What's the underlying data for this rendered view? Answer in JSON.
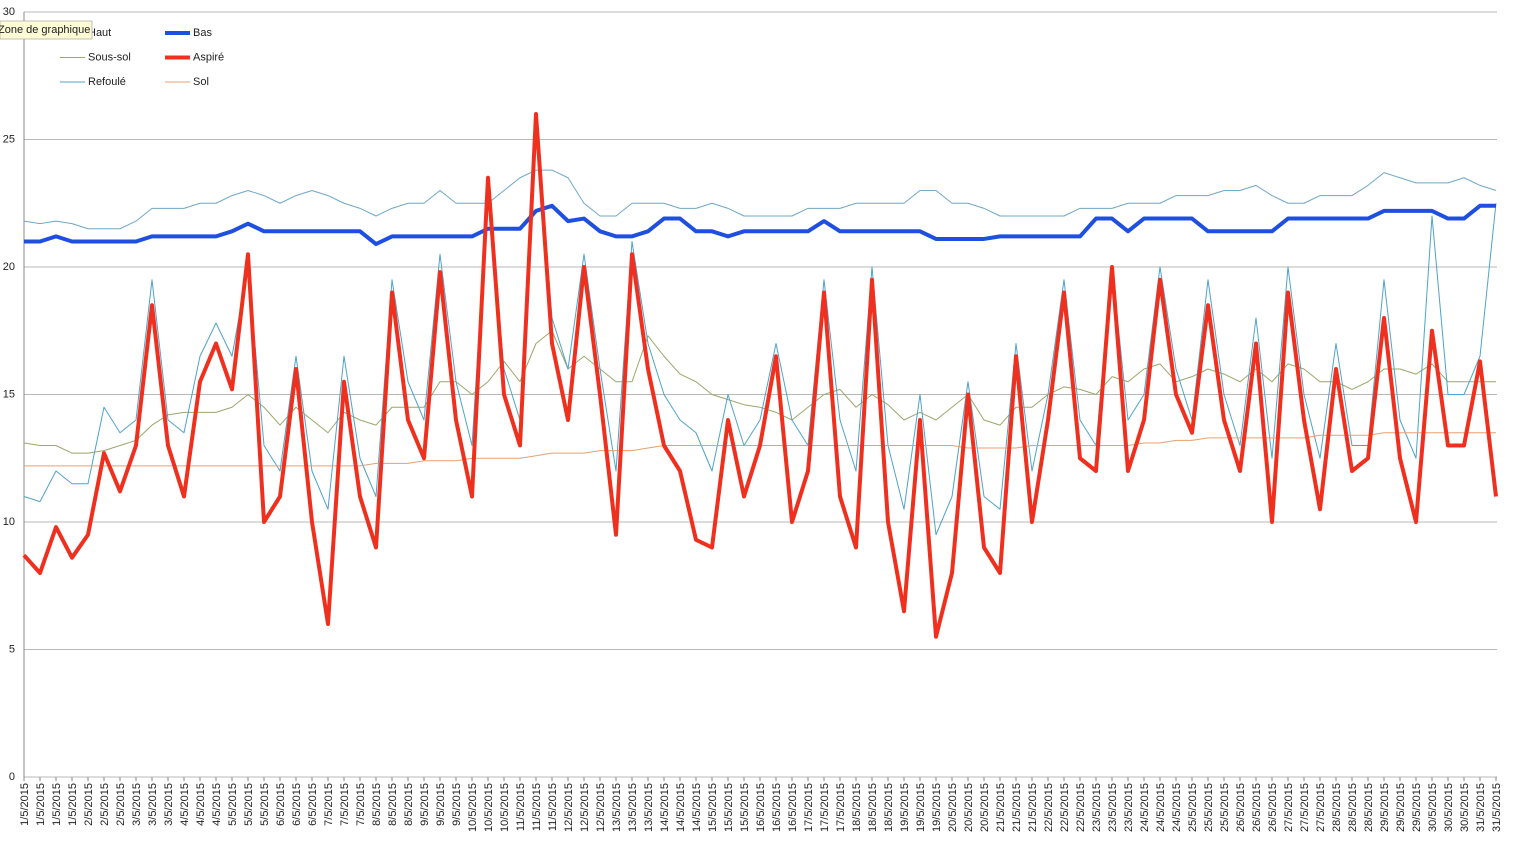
{
  "chart_data": {
    "type": "line",
    "tooltip": "Zone de graphique",
    "categories": [
      "1/5/2015",
      "1/5/2015",
      "1/5/2015",
      "1/5/2015",
      "2/5/2015",
      "2/5/2015",
      "2/5/2015",
      "3/5/2015",
      "3/5/2015",
      "3/5/2015",
      "4/5/2015",
      "4/5/2015",
      "4/5/2015",
      "5/5/2015",
      "5/5/2015",
      "5/5/2015",
      "6/5/2015",
      "6/5/2015",
      "6/5/2015",
      "7/5/2015",
      "7/5/2015",
      "7/5/2015",
      "8/5/2015",
      "8/5/2015",
      "8/5/2015",
      "9/5/2015",
      "9/5/2015",
      "9/5/2015",
      "10/5/2015",
      "10/5/2015",
      "10/5/2015",
      "11/5/2015",
      "11/5/2015",
      "11/5/2015",
      "12/5/2015",
      "12/5/2015",
      "12/5/2015",
      "13/5/2015",
      "13/5/2015",
      "13/5/2015",
      "14/5/2015",
      "14/5/2015",
      "14/5/2015",
      "15/5/2015",
      "15/5/2015",
      "15/5/2015",
      "16/5/2015",
      "16/5/2015",
      "16/5/2015",
      "17/5/2015",
      "17/5/2015",
      "17/5/2015",
      "18/5/2015",
      "18/5/2015",
      "18/5/2015",
      "19/5/2015",
      "19/5/2015",
      "19/5/2015",
      "20/5/2015",
      "20/5/2015",
      "20/5/2015",
      "21/5/2015",
      "21/5/2015",
      "21/5/2015",
      "22/5/2015",
      "22/5/2015",
      "22/5/2015",
      "23/5/2015",
      "23/5/2015",
      "23/5/2015",
      "24/5/2015",
      "24/5/2015",
      "24/5/2015",
      "25/5/2015",
      "25/5/2015",
      "25/5/2015",
      "26/5/2015",
      "26/5/2015",
      "26/5/2015",
      "27/5/2015",
      "27/5/2015",
      "27/5/2015",
      "28/5/2015",
      "28/5/2015",
      "28/5/2015",
      "29/5/2015",
      "29/5/2015",
      "29/5/2015",
      "30/5/2015",
      "30/5/2015",
      "30/5/2015",
      "31/5/2015",
      "31/5/2015"
    ],
    "series": [
      {
        "name": "Haut",
        "color": "#6fa8c8",
        "width": 1,
        "values": [
          21.8,
          21.7,
          21.8,
          21.7,
          21.5,
          21.5,
          21.5,
          21.8,
          22.3,
          22.3,
          22.3,
          22.5,
          22.5,
          22.8,
          23,
          22.8,
          22.5,
          22.8,
          23,
          22.8,
          22.5,
          22.3,
          22,
          22.3,
          22.5,
          22.5,
          23,
          22.5,
          22.5,
          22.5,
          23,
          23.5,
          23.8,
          23.8,
          23.5,
          22.5,
          22,
          22,
          22.5,
          22.5,
          22.5,
          22.3,
          22.3,
          22.5,
          22.3,
          22,
          22,
          22,
          22,
          22.3,
          22.3,
          22.3,
          22.5,
          22.5,
          22.5,
          22.5,
          23,
          23,
          22.5,
          22.5,
          22.3,
          22,
          22,
          22,
          22,
          22,
          22.3,
          22.3,
          22.3,
          22.5,
          22.5,
          22.5,
          22.8,
          22.8,
          22.8,
          23,
          23,
          23.2,
          22.8,
          22.5,
          22.5,
          22.8,
          22.8,
          22.8,
          23.2,
          23.7,
          23.5,
          23.3,
          23.3,
          23.3,
          23.5,
          23.2,
          23
        ]
      },
      {
        "name": "Bas",
        "color": "#1f4fe0",
        "width": 4,
        "values": [
          21,
          21,
          21.2,
          21,
          21,
          21,
          21,
          21,
          21.2,
          21.2,
          21.2,
          21.2,
          21.2,
          21.4,
          21.7,
          21.4,
          21.4,
          21.4,
          21.4,
          21.4,
          21.4,
          21.4,
          20.9,
          21.2,
          21.2,
          21.2,
          21.2,
          21.2,
          21.2,
          21.5,
          21.5,
          21.5,
          22.2,
          22.4,
          21.8,
          21.9,
          21.4,
          21.2,
          21.2,
          21.4,
          21.9,
          21.9,
          21.4,
          21.4,
          21.2,
          21.4,
          21.4,
          21.4,
          21.4,
          21.4,
          21.8,
          21.4,
          21.4,
          21.4,
          21.4,
          21.4,
          21.4,
          21.1,
          21.1,
          21.1,
          21.1,
          21.2,
          21.2,
          21.2,
          21.2,
          21.2,
          21.2,
          21.9,
          21.9,
          21.4,
          21.9,
          21.9,
          21.9,
          21.9,
          21.4,
          21.4,
          21.4,
          21.4,
          21.4,
          21.9,
          21.9,
          21.9,
          21.9,
          21.9,
          21.9,
          22.2,
          22.2,
          22.2,
          22.2,
          21.9,
          21.9,
          22.4,
          22.4
        ]
      },
      {
        "name": "Sous-sol",
        "color": "#9aa86a",
        "width": 1,
        "values": [
          13.1,
          13,
          13,
          12.7,
          12.7,
          12.8,
          13,
          13.2,
          13.8,
          14.2,
          14.3,
          14.3,
          14.3,
          14.5,
          15,
          14.5,
          13.8,
          14.5,
          14,
          13.5,
          14.3,
          14,
          13.8,
          14.5,
          14.5,
          14.5,
          15.5,
          15.5,
          15,
          15.5,
          16.3,
          15.5,
          17,
          17.5,
          16,
          16.5,
          16,
          15.5,
          15.5,
          17.3,
          16.5,
          15.8,
          15.5,
          15,
          14.8,
          14.6,
          14.5,
          14.3,
          14,
          14.5,
          15,
          15.2,
          14.5,
          15,
          14.6,
          14,
          14.3,
          14,
          14.5,
          15,
          14,
          13.8,
          14.5,
          14.5,
          15,
          15.3,
          15.2,
          15,
          15.7,
          15.5,
          16,
          16.2,
          15.5,
          15.7,
          16,
          15.8,
          15.5,
          16,
          15.5,
          16.2,
          16,
          15.5,
          15.5,
          15.2,
          15.5,
          16,
          16,
          15.8,
          16.2,
          15.5,
          15.5,
          15.5,
          15.5
        ]
      },
      {
        "name": "Aspiré",
        "color": "#f0301e",
        "width": 4,
        "values": [
          8.7,
          8.0,
          9.8,
          8.6,
          9.5,
          12.7,
          11.2,
          13,
          18.5,
          13,
          11,
          15.5,
          17,
          15.2,
          20.5,
          10,
          11,
          16,
          10,
          6,
          15.5,
          11,
          9,
          19,
          14,
          12.5,
          19.8,
          14,
          11,
          23.5,
          15,
          13,
          26,
          17,
          14,
          20,
          15,
          9.5,
          20.5,
          16,
          13,
          12,
          9.3,
          9,
          14,
          11,
          13,
          16.5,
          10,
          12,
          19,
          11,
          9,
          19.5,
          10,
          6.5,
          14,
          5.5,
          8,
          15,
          9,
          8,
          16.5,
          10,
          14,
          19,
          12.5,
          12,
          20,
          12,
          14,
          19.5,
          15,
          13.5,
          18.5,
          14,
          12,
          17,
          10,
          19,
          14,
          10.5,
          16,
          12,
          12.5,
          18,
          12.5,
          10,
          17.5,
          13,
          13,
          16.3,
          11
        ]
      },
      {
        "name": "Refoulé",
        "color": "#4fa3c9",
        "width": 1,
        "values": [
          11,
          10.8,
          12,
          11.5,
          11.5,
          14.5,
          13.5,
          14,
          19.5,
          14,
          13.5,
          16.5,
          17.8,
          16.5,
          20,
          13,
          12,
          16.5,
          12,
          10.5,
          16.5,
          12.5,
          11,
          19.5,
          15.5,
          14,
          20.5,
          15.5,
          13,
          23,
          16,
          14,
          26,
          18,
          16,
          20.5,
          16,
          12,
          21,
          17,
          15,
          14,
          13.5,
          12,
          15,
          13,
          14,
          17,
          14,
          13,
          19.5,
          14,
          12,
          20,
          13,
          10.5,
          15,
          9.5,
          11,
          15.5,
          11,
          10.5,
          17,
          12,
          15,
          19.5,
          14,
          13,
          20,
          14,
          15,
          20,
          16,
          14,
          19.5,
          15,
          13,
          18,
          12.5,
          20,
          15,
          12.5,
          17,
          13,
          13,
          19.5,
          14,
          12.5,
          22,
          15,
          15,
          16.5,
          22.5
        ]
      },
      {
        "name": "Sol",
        "color": "#e8a070",
        "width": 1,
        "values": [
          12.2,
          12.2,
          12.2,
          12.2,
          12.2,
          12.2,
          12.2,
          12.2,
          12.2,
          12.2,
          12.2,
          12.2,
          12.2,
          12.2,
          12.2,
          12.2,
          12.2,
          12.2,
          12.2,
          12.2,
          12.2,
          12.2,
          12.3,
          12.3,
          12.3,
          12.4,
          12.4,
          12.4,
          12.5,
          12.5,
          12.5,
          12.5,
          12.6,
          12.7,
          12.7,
          12.7,
          12.8,
          12.8,
          12.8,
          12.9,
          13,
          13,
          13,
          13,
          13,
          13,
          13,
          13,
          13,
          13,
          13,
          13,
          13,
          13,
          13,
          13,
          13,
          13,
          13,
          12.9,
          12.9,
          12.9,
          12.9,
          13,
          13,
          13,
          13,
          13,
          13,
          13,
          13.1,
          13.1,
          13.2,
          13.2,
          13.3,
          13.3,
          13.3,
          13.3,
          13.3,
          13.3,
          13.3,
          13.4,
          13.4,
          13.4,
          13.4,
          13.5,
          13.5,
          13.5,
          13.5,
          13.5,
          13.5,
          13.5,
          13.5
        ]
      }
    ],
    "ylim": [
      0,
      30
    ],
    "yticks": [
      0,
      5,
      10,
      15,
      20,
      25,
      30
    ],
    "grid": true
  }
}
